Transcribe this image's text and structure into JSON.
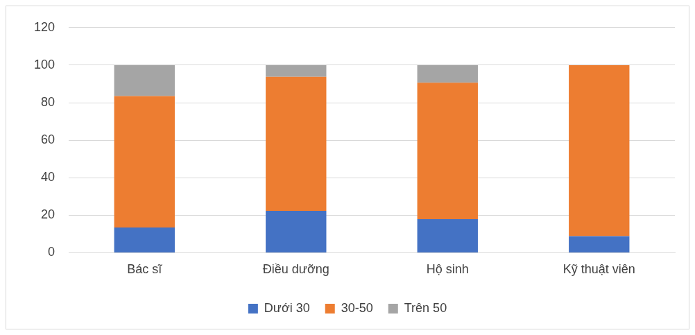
{
  "chart_data": {
    "type": "bar",
    "stacked": true,
    "categories": [
      "Bác sĩ",
      "Điều dưỡng",
      "Hộ sinh",
      "Kỹ thuật viên"
    ],
    "series": [
      {
        "name": "Dưới 30",
        "color": "#4472c4",
        "values": [
          13.5,
          22.3,
          17.9,
          8.8
        ]
      },
      {
        "name": "30-50",
        "color": "#ed7d31",
        "values": [
          70,
          71.5,
          72.7,
          91.2
        ]
      },
      {
        "name": "Trên 50",
        "color": "#a5a5a5",
        "values": [
          16.5,
          6.2,
          9.4,
          0
        ]
      }
    ],
    "ylim": [
      0,
      120
    ],
    "yticks": [
      0,
      20,
      40,
      60,
      80,
      100,
      120
    ],
    "grid": "y",
    "legend": "bottom"
  }
}
